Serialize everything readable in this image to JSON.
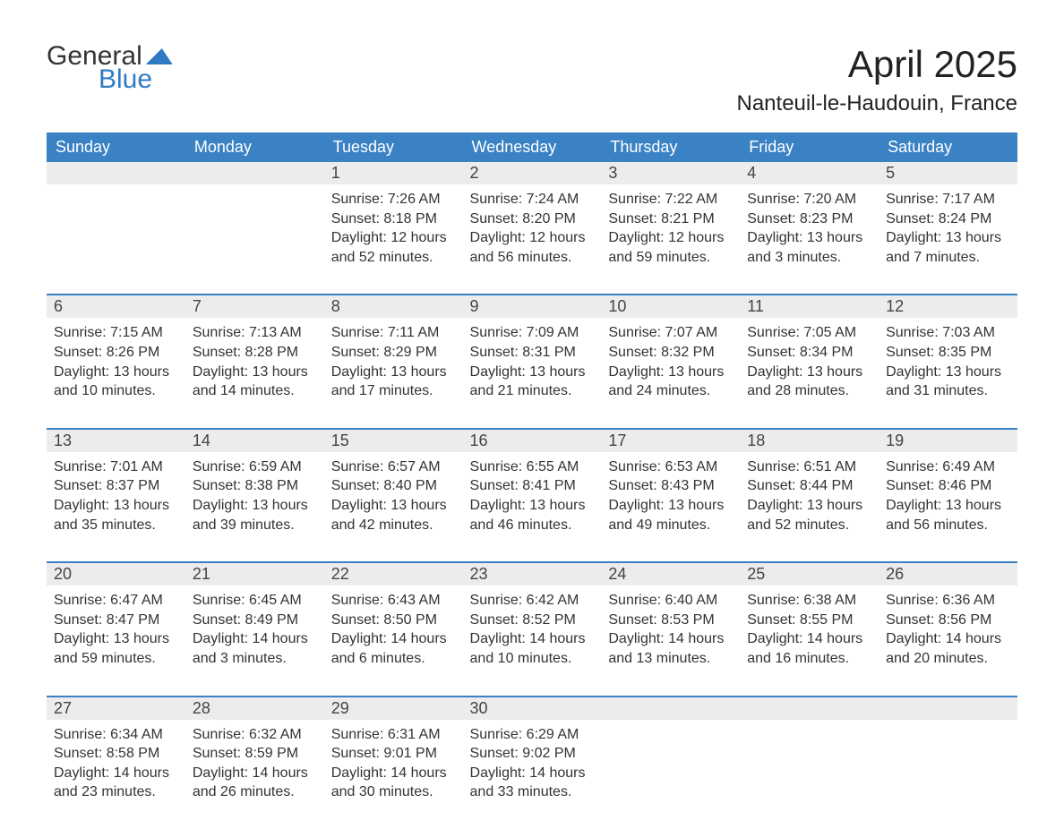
{
  "brand": {
    "word1": "General",
    "word2": "Blue"
  },
  "title": "April 2025",
  "location": "Nanteuil-le-Haudouin, France",
  "colors": {
    "header_bg": "#3a82c4",
    "header_text": "#ffffff",
    "daynum_bg": "#ececec",
    "text": "#333333",
    "brand_blue": "#2e7bc4",
    "page_bg": "#ffffff",
    "separator": "#3a82c4"
  },
  "typography": {
    "title_fontsize": 42,
    "location_fontsize": 24,
    "dow_fontsize": 18,
    "daynum_fontsize": 18,
    "detail_fontsize": 16
  },
  "days_of_week": [
    "Sunday",
    "Monday",
    "Tuesday",
    "Wednesday",
    "Thursday",
    "Friday",
    "Saturday"
  ],
  "weeks": [
    [
      null,
      null,
      {
        "n": "1",
        "sunrise": "Sunrise: 7:26 AM",
        "sunset": "Sunset: 8:18 PM",
        "day1": "Daylight: 12 hours",
        "day2": "and 52 minutes."
      },
      {
        "n": "2",
        "sunrise": "Sunrise: 7:24 AM",
        "sunset": "Sunset: 8:20 PM",
        "day1": "Daylight: 12 hours",
        "day2": "and 56 minutes."
      },
      {
        "n": "3",
        "sunrise": "Sunrise: 7:22 AM",
        "sunset": "Sunset: 8:21 PM",
        "day1": "Daylight: 12 hours",
        "day2": "and 59 minutes."
      },
      {
        "n": "4",
        "sunrise": "Sunrise: 7:20 AM",
        "sunset": "Sunset: 8:23 PM",
        "day1": "Daylight: 13 hours",
        "day2": "and 3 minutes."
      },
      {
        "n": "5",
        "sunrise": "Sunrise: 7:17 AM",
        "sunset": "Sunset: 8:24 PM",
        "day1": "Daylight: 13 hours",
        "day2": "and 7 minutes."
      }
    ],
    [
      {
        "n": "6",
        "sunrise": "Sunrise: 7:15 AM",
        "sunset": "Sunset: 8:26 PM",
        "day1": "Daylight: 13 hours",
        "day2": "and 10 minutes."
      },
      {
        "n": "7",
        "sunrise": "Sunrise: 7:13 AM",
        "sunset": "Sunset: 8:28 PM",
        "day1": "Daylight: 13 hours",
        "day2": "and 14 minutes."
      },
      {
        "n": "8",
        "sunrise": "Sunrise: 7:11 AM",
        "sunset": "Sunset: 8:29 PM",
        "day1": "Daylight: 13 hours",
        "day2": "and 17 minutes."
      },
      {
        "n": "9",
        "sunrise": "Sunrise: 7:09 AM",
        "sunset": "Sunset: 8:31 PM",
        "day1": "Daylight: 13 hours",
        "day2": "and 21 minutes."
      },
      {
        "n": "10",
        "sunrise": "Sunrise: 7:07 AM",
        "sunset": "Sunset: 8:32 PM",
        "day1": "Daylight: 13 hours",
        "day2": "and 24 minutes."
      },
      {
        "n": "11",
        "sunrise": "Sunrise: 7:05 AM",
        "sunset": "Sunset: 8:34 PM",
        "day1": "Daylight: 13 hours",
        "day2": "and 28 minutes."
      },
      {
        "n": "12",
        "sunrise": "Sunrise: 7:03 AM",
        "sunset": "Sunset: 8:35 PM",
        "day1": "Daylight: 13 hours",
        "day2": "and 31 minutes."
      }
    ],
    [
      {
        "n": "13",
        "sunrise": "Sunrise: 7:01 AM",
        "sunset": "Sunset: 8:37 PM",
        "day1": "Daylight: 13 hours",
        "day2": "and 35 minutes."
      },
      {
        "n": "14",
        "sunrise": "Sunrise: 6:59 AM",
        "sunset": "Sunset: 8:38 PM",
        "day1": "Daylight: 13 hours",
        "day2": "and 39 minutes."
      },
      {
        "n": "15",
        "sunrise": "Sunrise: 6:57 AM",
        "sunset": "Sunset: 8:40 PM",
        "day1": "Daylight: 13 hours",
        "day2": "and 42 minutes."
      },
      {
        "n": "16",
        "sunrise": "Sunrise: 6:55 AM",
        "sunset": "Sunset: 8:41 PM",
        "day1": "Daylight: 13 hours",
        "day2": "and 46 minutes."
      },
      {
        "n": "17",
        "sunrise": "Sunrise: 6:53 AM",
        "sunset": "Sunset: 8:43 PM",
        "day1": "Daylight: 13 hours",
        "day2": "and 49 minutes."
      },
      {
        "n": "18",
        "sunrise": "Sunrise: 6:51 AM",
        "sunset": "Sunset: 8:44 PM",
        "day1": "Daylight: 13 hours",
        "day2": "and 52 minutes."
      },
      {
        "n": "19",
        "sunrise": "Sunrise: 6:49 AM",
        "sunset": "Sunset: 8:46 PM",
        "day1": "Daylight: 13 hours",
        "day2": "and 56 minutes."
      }
    ],
    [
      {
        "n": "20",
        "sunrise": "Sunrise: 6:47 AM",
        "sunset": "Sunset: 8:47 PM",
        "day1": "Daylight: 13 hours",
        "day2": "and 59 minutes."
      },
      {
        "n": "21",
        "sunrise": "Sunrise: 6:45 AM",
        "sunset": "Sunset: 8:49 PM",
        "day1": "Daylight: 14 hours",
        "day2": "and 3 minutes."
      },
      {
        "n": "22",
        "sunrise": "Sunrise: 6:43 AM",
        "sunset": "Sunset: 8:50 PM",
        "day1": "Daylight: 14 hours",
        "day2": "and 6 minutes."
      },
      {
        "n": "23",
        "sunrise": "Sunrise: 6:42 AM",
        "sunset": "Sunset: 8:52 PM",
        "day1": "Daylight: 14 hours",
        "day2": "and 10 minutes."
      },
      {
        "n": "24",
        "sunrise": "Sunrise: 6:40 AM",
        "sunset": "Sunset: 8:53 PM",
        "day1": "Daylight: 14 hours",
        "day2": "and 13 minutes."
      },
      {
        "n": "25",
        "sunrise": "Sunrise: 6:38 AM",
        "sunset": "Sunset: 8:55 PM",
        "day1": "Daylight: 14 hours",
        "day2": "and 16 minutes."
      },
      {
        "n": "26",
        "sunrise": "Sunrise: 6:36 AM",
        "sunset": "Sunset: 8:56 PM",
        "day1": "Daylight: 14 hours",
        "day2": "and 20 minutes."
      }
    ],
    [
      {
        "n": "27",
        "sunrise": "Sunrise: 6:34 AM",
        "sunset": "Sunset: 8:58 PM",
        "day1": "Daylight: 14 hours",
        "day2": "and 23 minutes."
      },
      {
        "n": "28",
        "sunrise": "Sunrise: 6:32 AM",
        "sunset": "Sunset: 8:59 PM",
        "day1": "Daylight: 14 hours",
        "day2": "and 26 minutes."
      },
      {
        "n": "29",
        "sunrise": "Sunrise: 6:31 AM",
        "sunset": "Sunset: 9:01 PM",
        "day1": "Daylight: 14 hours",
        "day2": "and 30 minutes."
      },
      {
        "n": "30",
        "sunrise": "Sunrise: 6:29 AM",
        "sunset": "Sunset: 9:02 PM",
        "day1": "Daylight: 14 hours",
        "day2": "and 33 minutes."
      },
      null,
      null,
      null
    ]
  ]
}
